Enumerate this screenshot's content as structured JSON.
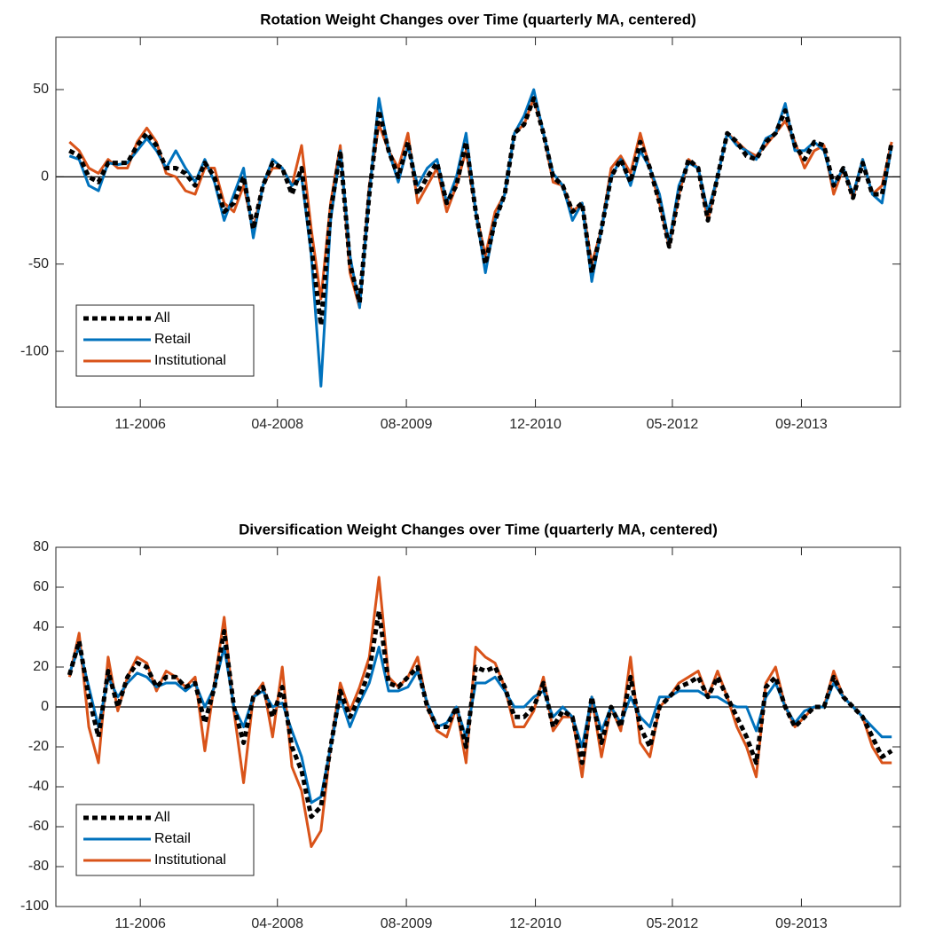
{
  "chart_data": [
    {
      "type": "line",
      "title": "Rotation Weight Changes over Time (quarterly MA, centered)",
      "x": [
        2006.1,
        2006.2,
        2006.3,
        2006.4,
        2006.5,
        2006.6,
        2006.7,
        2006.8,
        2006.9,
        2007.0,
        2007.1,
        2007.2,
        2007.3,
        2007.4,
        2007.5,
        2007.6,
        2007.7,
        2007.8,
        2007.9,
        2008.0,
        2008.1,
        2008.2,
        2008.3,
        2008.4,
        2008.5,
        2008.6,
        2008.7,
        2008.8,
        2008.9,
        2009.0,
        2009.1,
        2009.2,
        2009.3,
        2009.4,
        2009.5,
        2009.6,
        2009.7,
        2009.8,
        2009.9,
        2010.0,
        2010.1,
        2010.2,
        2010.3,
        2010.4,
        2010.5,
        2010.6,
        2010.7,
        2010.8,
        2010.9,
        2011.0,
        2011.1,
        2011.2,
        2011.3,
        2011.4,
        2011.5,
        2011.6,
        2011.7,
        2011.8,
        2011.9,
        2012.0,
        2012.1,
        2012.2,
        2012.3,
        2012.4,
        2012.5,
        2012.6,
        2012.7,
        2012.8,
        2012.9,
        2013.0,
        2013.1,
        2013.2,
        2013.3,
        2013.4,
        2013.5,
        2013.6,
        2013.7,
        2013.8,
        2013.9,
        2014.0,
        2014.1,
        2014.2,
        2014.3,
        2014.4,
        2014.5,
        2014.6
      ],
      "series": [
        {
          "name": "All",
          "color": "#000000",
          "style": "dotted",
          "values": [
            15,
            12,
            0,
            -3,
            8,
            8,
            8,
            18,
            25,
            18,
            5,
            5,
            2,
            -5,
            8,
            0,
            -20,
            -15,
            0,
            -30,
            -5,
            8,
            5,
            -10,
            5,
            -40,
            -85,
            -20,
            15,
            -50,
            -72,
            -10,
            38,
            15,
            0,
            20,
            -10,
            0,
            8,
            -15,
            -5,
            20,
            -20,
            -50,
            -25,
            -10,
            25,
            30,
            45,
            25,
            0,
            -5,
            -20,
            -15,
            -55,
            -30,
            0,
            10,
            -3,
            20,
            5,
            -15,
            -40,
            -10,
            10,
            5,
            -25,
            0,
            25,
            20,
            12,
            10,
            20,
            25,
            38,
            18,
            10,
            20,
            18,
            -5,
            5,
            -12,
            8,
            -10,
            -10,
            20
          ]
        },
        {
          "name": "Retail",
          "color": "#0072BD",
          "style": "solid",
          "values": [
            12,
            10,
            -5,
            -8,
            8,
            7,
            8,
            15,
            22,
            15,
            5,
            15,
            5,
            -3,
            10,
            -3,
            -25,
            -10,
            5,
            -35,
            -5,
            10,
            5,
            -5,
            0,
            -45,
            -120,
            -25,
            15,
            -45,
            -75,
            -10,
            45,
            15,
            -3,
            18,
            -5,
            5,
            10,
            -15,
            0,
            25,
            -20,
            -55,
            -25,
            -10,
            25,
            35,
            50,
            25,
            2,
            -5,
            -25,
            -15,
            -60,
            -30,
            0,
            10,
            -5,
            15,
            5,
            -10,
            -38,
            -5,
            8,
            5,
            -20,
            0,
            25,
            18,
            15,
            10,
            22,
            25,
            42,
            15,
            15,
            20,
            15,
            -5,
            5,
            -10,
            10,
            -10,
            -15,
            18
          ]
        },
        {
          "name": "Institutional",
          "color": "#D95319",
          "style": "solid",
          "values": [
            20,
            15,
            5,
            2,
            10,
            5,
            5,
            20,
            28,
            20,
            2,
            0,
            -8,
            -10,
            5,
            5,
            -15,
            -20,
            -5,
            -30,
            -5,
            5,
            5,
            -5,
            18,
            -30,
            -70,
            -15,
            18,
            -55,
            -75,
            -5,
            30,
            15,
            5,
            25,
            -15,
            -5,
            5,
            -20,
            -5,
            15,
            -20,
            -45,
            -20,
            -10,
            25,
            30,
            45,
            25,
            -3,
            -5,
            -20,
            -15,
            -50,
            -30,
            5,
            12,
            2,
            25,
            5,
            -15,
            -40,
            -10,
            10,
            5,
            -25,
            0,
            25,
            20,
            15,
            12,
            18,
            25,
            32,
            20,
            5,
            15,
            18,
            -10,
            5,
            -12,
            10,
            -10,
            -5,
            20
          ]
        }
      ],
      "xlim": [
        2005.96,
        2014.69
      ],
      "xticks": [
        {
          "value": 2006.833,
          "label": "11-2006"
        },
        {
          "value": 2008.25,
          "label": "04-2008"
        },
        {
          "value": 2009.583,
          "label": "08-2009"
        },
        {
          "value": 2010.917,
          "label": "12-2010"
        },
        {
          "value": 2012.333,
          "label": "05-2012"
        },
        {
          "value": 2013.667,
          "label": "09-2013"
        }
      ],
      "ylim": [
        -132,
        80
      ],
      "yticks": [
        -100,
        -50,
        0,
        50
      ],
      "zero_line": true,
      "legend": "southwest"
    },
    {
      "type": "line",
      "title": "Diversification Weight Changes over Time (quarterly MA, centered)",
      "x": [
        2006.1,
        2006.2,
        2006.3,
        2006.4,
        2006.5,
        2006.6,
        2006.7,
        2006.8,
        2006.9,
        2007.0,
        2007.1,
        2007.2,
        2007.3,
        2007.4,
        2007.5,
        2007.6,
        2007.7,
        2007.8,
        2007.9,
        2008.0,
        2008.1,
        2008.2,
        2008.3,
        2008.4,
        2008.5,
        2008.6,
        2008.7,
        2008.8,
        2008.9,
        2009.0,
        2009.1,
        2009.2,
        2009.3,
        2009.4,
        2009.5,
        2009.6,
        2009.7,
        2009.8,
        2009.9,
        2010.0,
        2010.1,
        2010.2,
        2010.3,
        2010.4,
        2010.5,
        2010.6,
        2010.7,
        2010.8,
        2010.9,
        2011.0,
        2011.1,
        2011.2,
        2011.3,
        2011.4,
        2011.5,
        2011.6,
        2011.7,
        2011.8,
        2011.9,
        2012.0,
        2012.1,
        2012.2,
        2012.3,
        2012.4,
        2012.5,
        2012.6,
        2012.7,
        2012.8,
        2012.9,
        2013.0,
        2013.1,
        2013.2,
        2013.3,
        2013.4,
        2013.5,
        2013.6,
        2013.7,
        2013.8,
        2013.9,
        2014.0,
        2014.1,
        2014.2,
        2014.3,
        2014.4,
        2014.5,
        2014.6
      ],
      "series": [
        {
          "name": "All",
          "color": "#000000",
          "style": "dotted",
          "values": [
            16,
            33,
            5,
            -15,
            18,
            0,
            15,
            22,
            20,
            10,
            15,
            15,
            10,
            12,
            -8,
            10,
            38,
            0,
            -18,
            5,
            10,
            -5,
            10,
            -20,
            -32,
            -55,
            -50,
            -20,
            8,
            -5,
            5,
            18,
            48,
            12,
            10,
            15,
            20,
            0,
            -10,
            -10,
            0,
            -20,
            20,
            18,
            20,
            10,
            -5,
            -5,
            0,
            12,
            -10,
            -2,
            -5,
            -28,
            5,
            -18,
            0,
            -10,
            15,
            -10,
            -20,
            0,
            5,
            10,
            12,
            15,
            5,
            15,
            5,
            -5,
            -15,
            -28,
            10,
            15,
            0,
            -10,
            -5,
            0,
            0,
            15,
            5,
            0,
            -5,
            -15,
            -25,
            -22
          ]
        },
        {
          "name": "Retail",
          "color": "#0072BD",
          "style": "solid",
          "values": [
            17,
            30,
            10,
            -10,
            15,
            5,
            12,
            17,
            15,
            10,
            12,
            12,
            8,
            12,
            0,
            10,
            30,
            0,
            -10,
            5,
            8,
            0,
            2,
            -12,
            -25,
            -48,
            -45,
            -20,
            5,
            -10,
            2,
            12,
            30,
            8,
            8,
            10,
            18,
            2,
            -10,
            -8,
            0,
            -15,
            12,
            12,
            15,
            8,
            0,
            0,
            5,
            8,
            -5,
            0,
            -5,
            -20,
            5,
            -12,
            0,
            -8,
            5,
            -5,
            -10,
            5,
            5,
            8,
            8,
            8,
            5,
            5,
            2,
            0,
            0,
            -12,
            5,
            12,
            0,
            -8,
            -2,
            0,
            0,
            12,
            5,
            0,
            -5,
            -10,
            -15,
            -15
          ]
        },
        {
          "name": "Institutional",
          "color": "#D95319",
          "style": "solid",
          "values": [
            15,
            37,
            -10,
            -28,
            25,
            -2,
            15,
            25,
            22,
            8,
            18,
            15,
            10,
            15,
            -22,
            12,
            45,
            -2,
            -38,
            5,
            12,
            -15,
            20,
            -30,
            -42,
            -70,
            -62,
            -20,
            12,
            -2,
            10,
            25,
            65,
            15,
            10,
            15,
            25,
            0,
            -12,
            -15,
            0,
            -28,
            30,
            25,
            22,
            10,
            -10,
            -10,
            -2,
            15,
            -12,
            -5,
            -5,
            -35,
            5,
            -25,
            0,
            -12,
            25,
            -18,
            -25,
            0,
            5,
            12,
            15,
            18,
            5,
            18,
            5,
            -10,
            -20,
            -35,
            12,
            20,
            0,
            -10,
            -5,
            0,
            0,
            18,
            5,
            0,
            -5,
            -20,
            -28,
            -28
          ]
        }
      ],
      "xlim": [
        2005.96,
        2014.69
      ],
      "xticks": [
        {
          "value": 2006.833,
          "label": "11-2006"
        },
        {
          "value": 2008.25,
          "label": "04-2008"
        },
        {
          "value": 2009.583,
          "label": "08-2009"
        },
        {
          "value": 2010.917,
          "label": "12-2010"
        },
        {
          "value": 2012.333,
          "label": "05-2012"
        },
        {
          "value": 2013.667,
          "label": "09-2013"
        }
      ],
      "ylim": [
        -100,
        80
      ],
      "yticks": [
        -100,
        -80,
        -60,
        -40,
        -20,
        0,
        20,
        40,
        60,
        80
      ],
      "zero_line": true,
      "legend": "southwest"
    }
  ]
}
